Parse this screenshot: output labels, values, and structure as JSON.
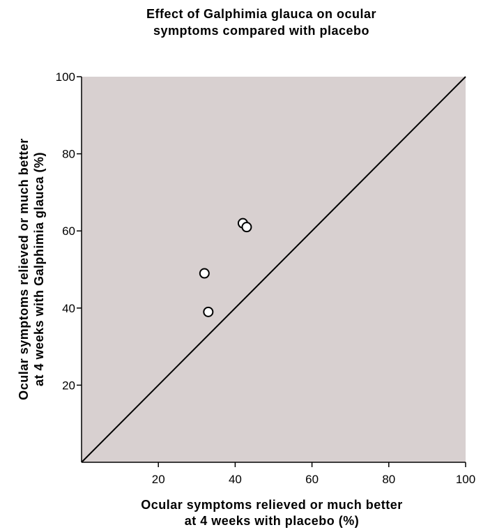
{
  "chart_data": {
    "type": "scatter",
    "title": [
      "Effect of Galphimia glauca on ocular",
      "symptoms compared with placebo"
    ],
    "x_label": [
      "Ocular symptoms relieved or much better",
      "at 4 weeks with placebo (%)"
    ],
    "y_label": [
      "Ocular symptoms relieved or much better",
      "at 4 weeks with Galphimia glauca (%)"
    ],
    "x": [
      42,
      43,
      32,
      33
    ],
    "y": [
      62,
      61,
      49,
      39
    ],
    "xlim": [
      0,
      100
    ],
    "ylim": [
      0,
      100
    ],
    "xticks": [
      20,
      40,
      60,
      80,
      100
    ],
    "yticks": [
      20,
      40,
      60,
      80,
      100
    ],
    "identity_line": true,
    "background": "#d8d0d0",
    "marker_fill": "#ffffff",
    "marker_edge": "#000000"
  }
}
